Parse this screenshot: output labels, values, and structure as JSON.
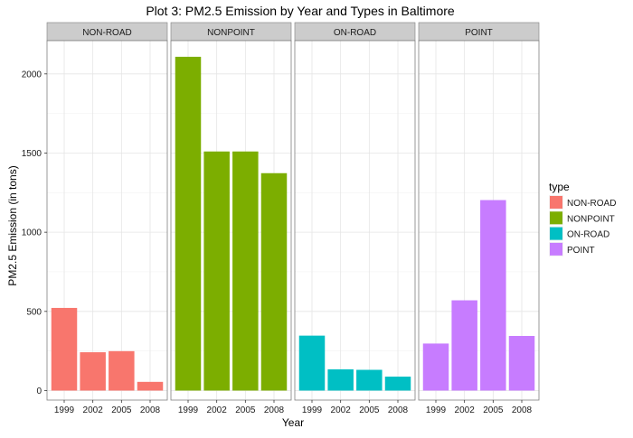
{
  "chart_data": {
    "type": "bar",
    "title": "Plot 3: PM2.5 Emission by Year and Types in Baltimore",
    "xlabel": "Year",
    "ylabel": "PM2.5 Emission (in tons)",
    "categories": [
      "1999",
      "2002",
      "2005",
      "2008"
    ],
    "yticks": [
      0,
      500,
      1000,
      1500,
      2000
    ],
    "ylim": [
      -60,
      2210
    ],
    "grid": true,
    "legend": {
      "title": "type",
      "placement": "right"
    },
    "series": [
      {
        "name": "NON-ROAD",
        "color": "#F8766D",
        "values": [
          522,
          242,
          249,
          55
        ]
      },
      {
        "name": "NONPOINT",
        "color": "#7CAE00",
        "values": [
          2108,
          1510,
          1510,
          1373
        ]
      },
      {
        "name": "ON-ROAD",
        "color": "#00BFC4",
        "values": [
          347,
          134,
          131,
          88
        ]
      },
      {
        "name": "POINT",
        "color": "#C77CFF",
        "values": [
          297,
          570,
          1203,
          345
        ]
      }
    ]
  }
}
